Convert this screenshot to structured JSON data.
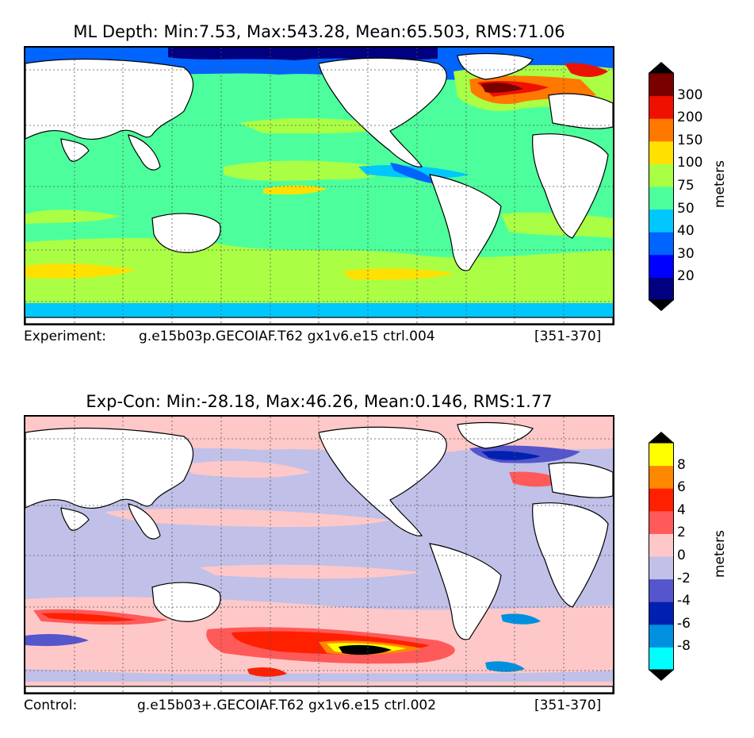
{
  "chart_data": [
    {
      "type": "heatmap",
      "title": "ML Depth: Min:7.53, Max:543.28, Mean:65.503, RMS:71.06",
      "stats": {
        "min": 7.53,
        "max": 543.28,
        "mean": 65.503,
        "rms": 71.06
      },
      "colorbar": {
        "unit": "meters",
        "extend": "both",
        "levels": [
          "20",
          "30",
          "40",
          "50",
          "75",
          "100",
          "150",
          "200",
          "300"
        ],
        "colors": [
          "#000080",
          "#0000ff",
          "#0064ff",
          "#00c8ff",
          "#4cff9c",
          "#aaff44",
          "#ffe000",
          "#ff7800",
          "#f01000",
          "#7a0000"
        ],
        "under_color": "#000000",
        "over_color": "#000000"
      },
      "footer": {
        "label": "Experiment:",
        "case": "g.e15b03p.GECOIAF.T62 gx1v6.e15 ctrl.004",
        "years": "[351-370]"
      }
    },
    {
      "type": "heatmap",
      "title": "Exp-Con: Min:-28.18, Max:46.26, Mean:0.146, RMS:1.77",
      "stats": {
        "min": -28.18,
        "max": 46.26,
        "mean": 0.146,
        "rms": 1.77
      },
      "colorbar": {
        "unit": "meters",
        "extend": "both",
        "levels": [
          "-8",
          "-6",
          "-4",
          "-2",
          "0",
          "2",
          "4",
          "6",
          "8"
        ],
        "colors": [
          "#00ffff",
          "#0090e0",
          "#0020b0",
          "#5555cc",
          "#c0c0e8",
          "#ffc8c8",
          "#ff5a5a",
          "#ff2000",
          "#ff8800",
          "#ffff00"
        ],
        "under_color": "#000000",
        "over_color": "#000000"
      },
      "footer": {
        "label": "Control:",
        "case": "g.e15b03+.GECOIAF.T62 gx1v6.e15 ctrl.002",
        "years": "[351-370]"
      }
    }
  ]
}
